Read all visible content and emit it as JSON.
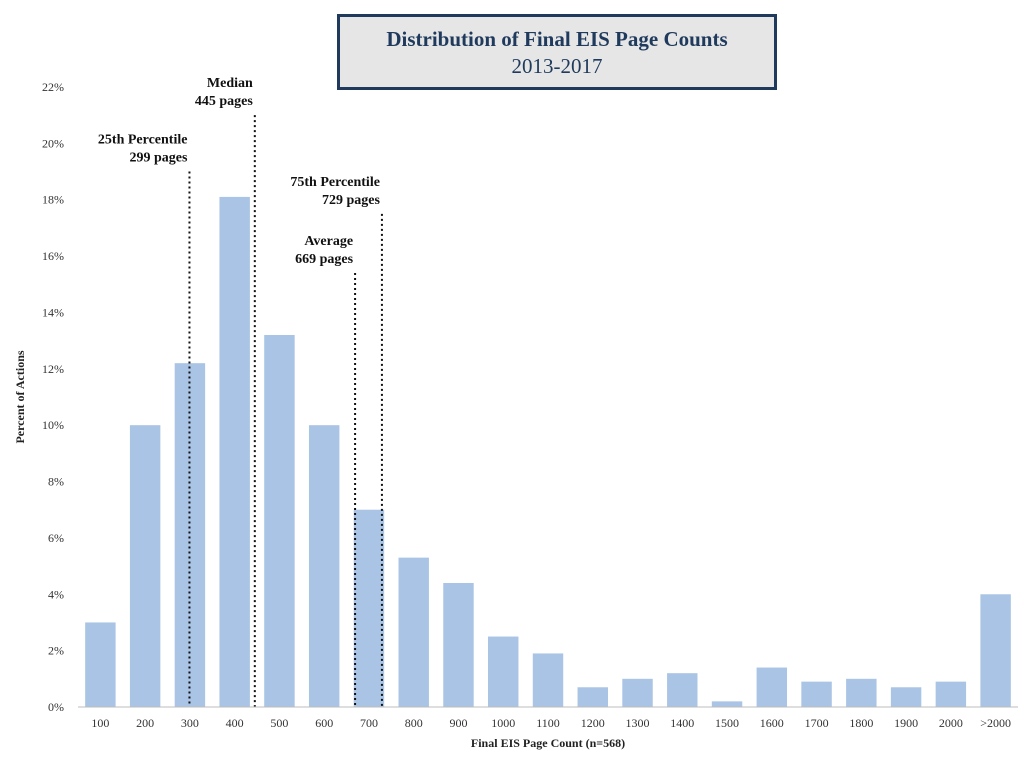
{
  "chart_data": {
    "type": "bar",
    "title": "Distribution of Final EIS Page Counts",
    "subtitle": "2013-2017",
    "xlabel": "Final EIS Page Count (n=568)",
    "ylabel": "Percent of Actions",
    "categories": [
      "100",
      "200",
      "300",
      "400",
      "500",
      "600",
      "700",
      "800",
      "900",
      "1000",
      "1100",
      "1200",
      "1300",
      "1400",
      "1500",
      "1600",
      "1700",
      "1800",
      "1900",
      "2000",
      ">2000"
    ],
    "values": [
      3.0,
      10.0,
      12.2,
      18.1,
      13.2,
      10.0,
      7.0,
      5.3,
      4.4,
      2.5,
      1.9,
      0.7,
      1.0,
      1.2,
      0.2,
      1.4,
      0.9,
      1.0,
      0.7,
      0.9,
      4.0
    ],
    "ylim": [
      0,
      22
    ],
    "yticks": [
      0,
      2,
      4,
      6,
      8,
      10,
      12,
      14,
      16,
      18,
      20,
      22
    ],
    "ytick_labels": [
      "0%",
      "2%",
      "4%",
      "6%",
      "8%",
      "10%",
      "12%",
      "14%",
      "16%",
      "18%",
      "20%",
      "22%"
    ],
    "bar_color": "#a9c4e4",
    "annotations": [
      {
        "name": "25th-percentile",
        "value": 299,
        "line1": "25th Percentile",
        "line2": "299 pages",
        "line_top": 19,
        "label_side": "left"
      },
      {
        "name": "median",
        "value": 445,
        "line1": "Median",
        "line2": "445 pages",
        "line_top": 21,
        "label_side": "left"
      },
      {
        "name": "average",
        "value": 669,
        "line1": "Average",
        "line2": "669 pages",
        "line_top": 15.4,
        "label_side": "left"
      },
      {
        "name": "75th-percentile",
        "value": 729,
        "line1": "75th Percentile",
        "line2": "729 pages",
        "line_top": 17.5,
        "label_side": "left"
      }
    ]
  }
}
